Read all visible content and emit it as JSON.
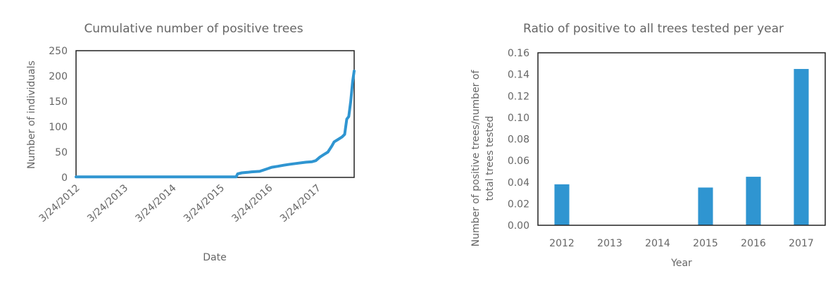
{
  "chart_data": [
    {
      "type": "line",
      "title": "Cumulative number of positive trees",
      "xlabel": "Date",
      "ylabel": "Number of individuals",
      "x_tick_labels": [
        "3/24/2012",
        "3/24/2013",
        "3/24/2014",
        "3/24/2015",
        "3/24/2016",
        "3/24/2017"
      ],
      "y_tick_labels": [
        "0",
        "50",
        "100",
        "150",
        "200",
        "250"
      ],
      "ylim": [
        0,
        250
      ],
      "xlim": [
        "2012-03-24",
        "2017-12-31"
      ],
      "grid": false,
      "color": "#2f95d1",
      "series": [
        {
          "x": [
            "2012-03-24",
            "2013-03-24",
            "2014-03-24",
            "2015-03-24",
            "2015-07-20",
            "2015-08-01",
            "2015-09-01",
            "2015-10-15",
            "2015-11-15",
            "2016-01-15",
            "2016-03-01",
            "2016-04-15",
            "2016-06-01",
            "2016-07-15",
            "2016-09-01",
            "2016-11-01",
            "2017-01-01",
            "2017-02-15",
            "2017-03-15",
            "2017-04-15",
            "2017-05-15",
            "2017-06-15",
            "2017-07-15",
            "2017-08-01",
            "2017-09-01",
            "2017-10-01",
            "2017-10-20",
            "2017-11-05",
            "2017-11-20",
            "2017-12-05",
            "2017-12-20",
            "2017-12-31"
          ],
          "values": [
            1,
            1,
            1,
            1,
            1,
            7,
            9,
            10,
            11,
            12,
            16,
            20,
            22,
            24,
            26,
            28,
            30,
            31,
            33,
            40,
            45,
            50,
            62,
            70,
            75,
            80,
            85,
            115,
            120,
            150,
            190,
            210
          ]
        }
      ]
    },
    {
      "type": "bar",
      "title": "Ratio of positive to all trees tested per year",
      "xlabel": "Year",
      "ylabel_lines": [
        "Number of positive trees/number of",
        "total trees tested"
      ],
      "categories": [
        "2012",
        "2013",
        "2014",
        "2015",
        "2016",
        "2017"
      ],
      "values": [
        0.038,
        0,
        0,
        0.035,
        0.045,
        0.145
      ],
      "y_tick_labels": [
        "0.00",
        "0.02",
        "0.04",
        "0.06",
        "0.08",
        "0.10",
        "0.12",
        "0.14",
        "0.16"
      ],
      "ylim": [
        0,
        0.16
      ],
      "grid": false,
      "color": "#2f95d1"
    }
  ]
}
